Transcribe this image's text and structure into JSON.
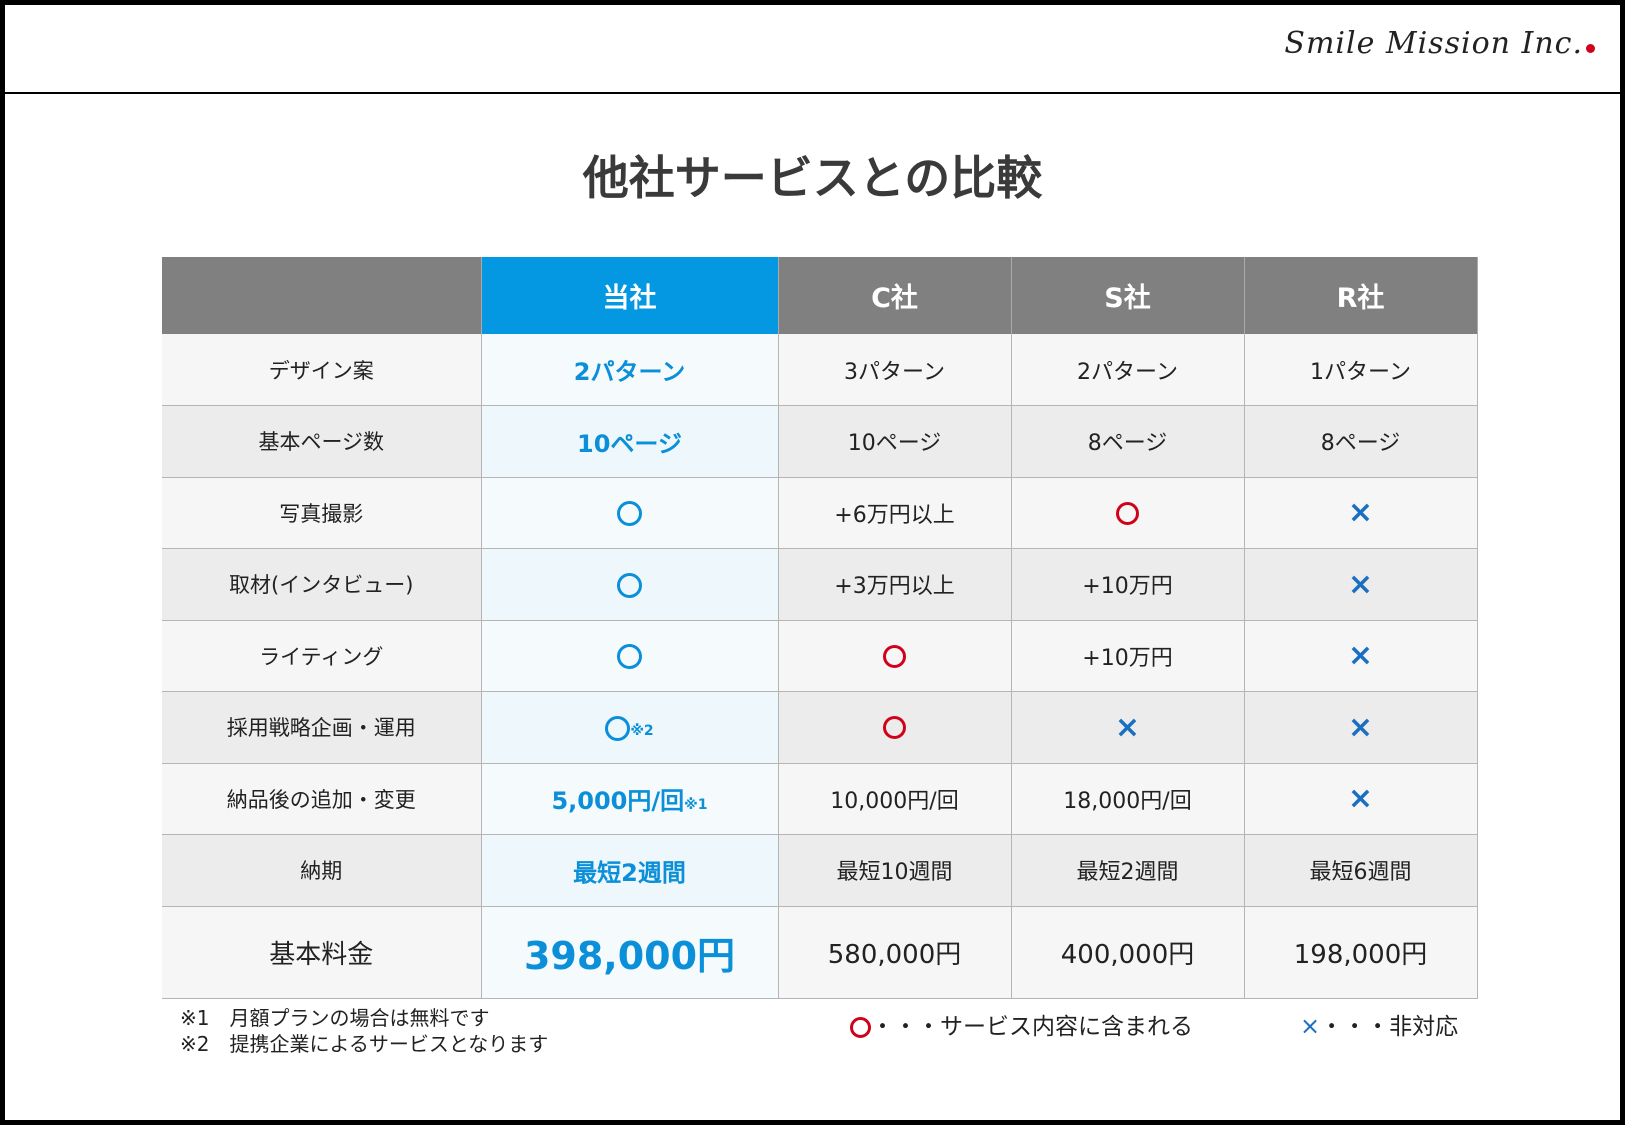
{
  "logo": "Smile Mission Inc.",
  "title": "他社サービスとの比較",
  "headers": [
    "",
    "当社",
    "C社",
    "S社",
    "R社"
  ],
  "rows": [
    {
      "label": "デザイン案",
      "own": "2パターン",
      "c": "3パターン",
      "s": "2パターン",
      "r": "1パターン"
    },
    {
      "label": "基本ページ数",
      "own": "10ページ",
      "c": "10ページ",
      "s": "8ページ",
      "r": "8ページ"
    },
    {
      "label": "写真撮影",
      "own": "○",
      "c": "+6万円以上",
      "s": "○",
      "r": "×"
    },
    {
      "label": "取材(インタビュー)",
      "own": "○",
      "c": "+3万円以上",
      "s": "+10万円",
      "r": "×"
    },
    {
      "label": "ライティング",
      "own": "○",
      "c": "○",
      "s": "+10万円",
      "r": "×"
    },
    {
      "label": "採用戦略企画・運用",
      "own": "○",
      "own_note": "※2",
      "c": "○",
      "s": "×",
      "r": "×"
    },
    {
      "label": "納品後の追加・変更",
      "own": "5,000円/回",
      "own_note": "※1",
      "c": "10,000円/回",
      "s": "18,000円/回",
      "r": "×"
    },
    {
      "label": "納期",
      "own": "最短2週間",
      "c": "最短10週間",
      "s": "最短2週間",
      "r": "最短6週間"
    },
    {
      "label": "基本料金",
      "own": "398,000円",
      "c": "580,000円",
      "s": "400,000円",
      "r": "198,000円"
    }
  ],
  "notes": [
    "※1　月額プランの場合は無料です",
    "※2　提携企業によるサービスとなります"
  ],
  "legend": {
    "circle": "・・・サービス内容に含まれる",
    "cross_mark": "×",
    "cross": "・・・非対応"
  },
  "colors": {
    "accent": "#0497e2",
    "header": "#808080",
    "red": "#d0021b",
    "cross": "#1a6fc0"
  }
}
